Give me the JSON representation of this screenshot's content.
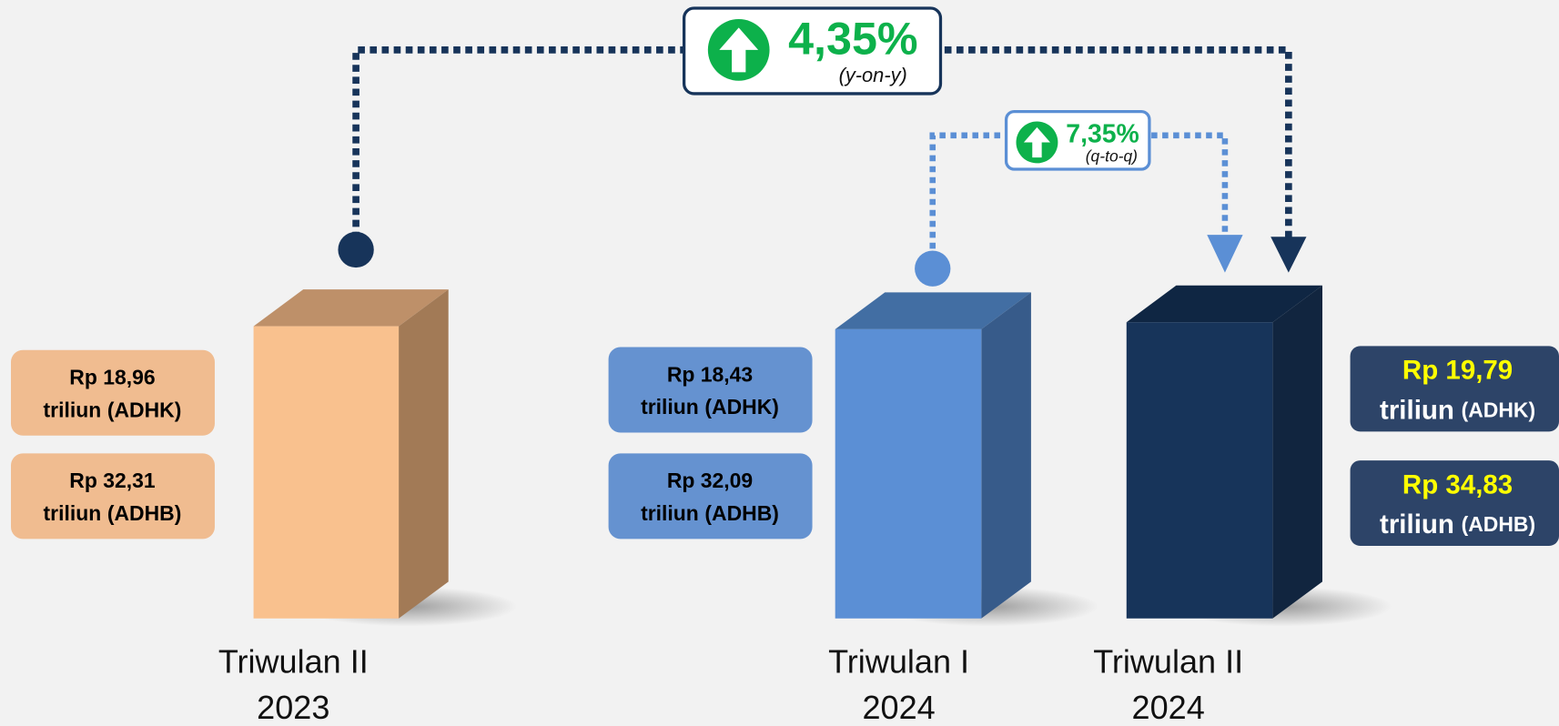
{
  "yoy": {
    "value": "4,35%",
    "label": "(y-on-y)"
  },
  "qtq": {
    "value": "7,35%",
    "label": "(q-to-q)"
  },
  "periods": [
    {
      "label": [
        "Triwulan II",
        "2023"
      ],
      "adhk": {
        "amount": "Rp 18,96",
        "unit": "triliun",
        "basis": "(ADHK)"
      },
      "adhb": {
        "amount": "Rp 32,31",
        "unit": "triliun",
        "basis": "(ADHB)"
      }
    },
    {
      "label": [
        "Triwulan I",
        "2024"
      ],
      "adhk": {
        "amount": "Rp 18,43",
        "unit": "triliun",
        "basis": "(ADHK)"
      },
      "adhb": {
        "amount": "Rp 32,09",
        "unit": "triliun",
        "basis": "(ADHB)"
      }
    },
    {
      "label": [
        "Triwulan II",
        "2024"
      ],
      "adhk": {
        "amount": "Rp 19,79",
        "unit": "triliun",
        "basis": "(ADHK)"
      },
      "adhb": {
        "amount": "Rp 34,83",
        "unit": "triliun",
        "basis": "(ADHB)"
      }
    }
  ]
}
